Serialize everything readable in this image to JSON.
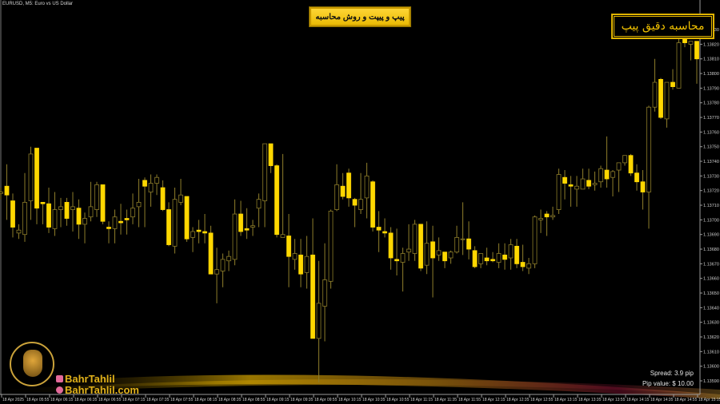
{
  "window": {
    "symbol_title": "EURUSD, M5:  Euro vs US Dollar"
  },
  "header_button": {
    "label": "پیپ و پیپت و روش محاسبه"
  },
  "indicator_box": {
    "label": "محاسبه دقیق پیپ"
  },
  "info_panel": {
    "spread": "Spread:  3.9  pip",
    "pip_value": "Pip value: $ 10.00"
  },
  "branding": {
    "instagram": "BahrTahlil",
    "website": "BahrTahlil.com",
    "instagram_icon": "instagram-icon",
    "website_icon": "globe-icon"
  },
  "colors": {
    "background": "#000000",
    "bear_candle": "#ffd700",
    "bull_candle_outline": "#8c7c2a",
    "axis": "#9a9a9a",
    "accent_gold": "#e0b300"
  },
  "chart_data": {
    "type": "candlestick",
    "symbol": "EURUSD",
    "timeframe": "M5",
    "ylim": [
      1.13589,
      1.13834
    ],
    "grid": false,
    "y_ticks": [
      "1.13830",
      "1.13820",
      "1.13810",
      "1.13800",
      "1.13790",
      "1.13780",
      "1.13770",
      "1.13760",
      "1.13750",
      "1.13740",
      "1.13730",
      "1.13720",
      "1.13710",
      "1.13700",
      "1.13690",
      "1.13680",
      "1.13670",
      "1.13660",
      "1.13650",
      "1.13640",
      "1.13630",
      "1.13620",
      "1.13610",
      "1.13600",
      "1.13590"
    ],
    "x_ticks": [
      "18 Apr 2025",
      "18 Apr 05:55",
      "18 Apr 06:15",
      "18 Apr 06:35",
      "18 Apr 06:55",
      "18 Apr 07:15",
      "18 Apr 07:35",
      "18 Apr 07:55",
      "18 Apr 08:15",
      "18 Apr 08:35",
      "18 Apr 08:55",
      "18 Apr 09:15",
      "18 Apr 09:35",
      "18 Apr 09:55",
      "18 Apr 10:15",
      "18 Apr 10:35",
      "18 Apr 10:55",
      "18 Apr 11:15",
      "18 Apr 11:35",
      "18 Apr 11:55",
      "18 Apr 12:15",
      "18 Apr 12:35",
      "18 Apr 12:55",
      "18 Apr 13:15",
      "18 Apr 13:35",
      "18 Apr 13:55",
      "18 Apr 14:15",
      "18 Apr 14:35",
      "18 Apr 14:55",
      "18 Apr 15:15"
    ],
    "ohlc": [
      [
        1.13718,
        1.13722,
        1.13714,
        1.13719
      ],
      [
        1.13723,
        1.13738,
        1.137,
        1.13717
      ],
      [
        1.13713,
        1.13718,
        1.13688,
        1.13695
      ],
      [
        1.13691,
        1.13697,
        1.13687,
        1.13693
      ],
      [
        1.1369,
        1.13732,
        1.13685,
        1.13712
      ],
      [
        1.13713,
        1.1375,
        1.137,
        1.13745
      ],
      [
        1.13749,
        1.13749,
        1.13697,
        1.13708
      ],
      [
        1.13712,
        1.13712,
        1.13697,
        1.13711
      ],
      [
        1.13711,
        1.13722,
        1.13691,
        1.13695
      ],
      [
        1.13694,
        1.13719,
        1.13689,
        1.13707
      ],
      [
        1.13707,
        1.13715,
        1.13695,
        1.13709
      ],
      [
        1.13712,
        1.13715,
        1.13696,
        1.13701
      ],
      [
        1.13707,
        1.13719,
        1.13692,
        1.13709
      ],
      [
        1.13708,
        1.13714,
        1.13687,
        1.13697
      ],
      [
        1.13697,
        1.13705,
        1.13684,
        1.13701
      ],
      [
        1.13702,
        1.13726,
        1.13699,
        1.13709
      ],
      [
        1.13707,
        1.13726,
        1.13702,
        1.13724
      ],
      [
        1.13724,
        1.13724,
        1.13697,
        1.13699
      ],
      [
        1.13695,
        1.13699,
        1.13684,
        1.13694
      ],
      [
        1.13694,
        1.13707,
        1.13684,
        1.13702
      ],
      [
        1.13699,
        1.13711,
        1.1369,
        1.13698
      ],
      [
        1.13701,
        1.13707,
        1.1369,
        1.137
      ],
      [
        1.13702,
        1.13718,
        1.13697,
        1.13708
      ],
      [
        1.13709,
        1.13728,
        1.13695,
        1.13712
      ],
      [
        1.13727,
        1.13729,
        1.13695,
        1.13723
      ],
      [
        1.13719,
        1.13731,
        1.13709,
        1.13725
      ],
      [
        1.13725,
        1.13731,
        1.13717,
        1.13729
      ],
      [
        1.13722,
        1.13727,
        1.13706,
        1.13707
      ],
      [
        1.13707,
        1.13712,
        1.13682,
        1.13683
      ],
      [
        1.13682,
        1.13722,
        1.13677,
        1.13714
      ],
      [
        1.13712,
        1.13728,
        1.1371,
        1.13717
      ],
      [
        1.13716,
        1.13716,
        1.13685,
        1.13687
      ],
      [
        1.13688,
        1.13695,
        1.13678,
        1.13692
      ],
      [
        1.13693,
        1.137,
        1.13684,
        1.13692
      ],
      [
        1.13692,
        1.13704,
        1.13684,
        1.13691
      ],
      [
        1.13691,
        1.13696,
        1.13663,
        1.13663
      ],
      [
        1.13663,
        1.13681,
        1.13643,
        1.13666
      ],
      [
        1.13665,
        1.13677,
        1.13654,
        1.13673
      ],
      [
        1.13672,
        1.13679,
        1.13665,
        1.13675
      ],
      [
        1.13673,
        1.13714,
        1.13669,
        1.13704
      ],
      [
        1.13704,
        1.13713,
        1.13689,
        1.13692
      ],
      [
        1.13694,
        1.13708,
        1.13687,
        1.13693
      ],
      [
        1.13695,
        1.137,
        1.13689,
        1.13696
      ],
      [
        1.13708,
        1.13718,
        1.13695,
        1.13714
      ],
      [
        1.13713,
        1.13752,
        1.13695,
        1.13752
      ],
      [
        1.13752,
        1.13752,
        1.13732,
        1.13737
      ],
      [
        1.13737,
        1.13738,
        1.13688,
        1.1369
      ],
      [
        1.13688,
        1.13745,
        1.13688,
        1.1369
      ],
      [
        1.13689,
        1.13704,
        1.13654,
        1.13675
      ],
      [
        1.13673,
        1.13687,
        1.13666,
        1.13677
      ],
      [
        1.13676,
        1.13687,
        1.13654,
        1.13663
      ],
      [
        1.13664,
        1.13689,
        1.13653,
        1.13675
      ],
      [
        1.13676,
        1.13701,
        1.13619,
        1.13619
      ],
      [
        1.13619,
        1.13672,
        1.13589,
        1.13643
      ],
      [
        1.13641,
        1.13684,
        1.13617,
        1.13659
      ],
      [
        1.13658,
        1.13707,
        1.13653,
        1.13706
      ],
      [
        1.13707,
        1.13738,
        1.13706,
        1.13724
      ],
      [
        1.13723,
        1.13732,
        1.13714,
        1.13716
      ],
      [
        1.13732,
        1.13735,
        1.13709,
        1.13715
      ],
      [
        1.13714,
        1.13715,
        1.13695,
        1.1371
      ],
      [
        1.13707,
        1.13732,
        1.13704,
        1.13714
      ],
      [
        1.13715,
        1.13739,
        1.13701,
        1.1373
      ],
      [
        1.13726,
        1.13727,
        1.13692,
        1.13695
      ],
      [
        1.13695,
        1.13706,
        1.13678,
        1.13693
      ],
      [
        1.13692,
        1.13701,
        1.13688,
        1.13691
      ],
      [
        1.13691,
        1.13695,
        1.13666,
        1.13674
      ],
      [
        1.13673,
        1.13694,
        1.13662,
        1.13672
      ],
      [
        1.13671,
        1.13681,
        1.13651,
        1.13677
      ],
      [
        1.13678,
        1.13697,
        1.13672,
        1.1368
      ],
      [
        1.13677,
        1.137,
        1.13672,
        1.13697
      ],
      [
        1.13697,
        1.13697,
        1.13665,
        1.13667
      ],
      [
        1.13669,
        1.13699,
        1.13663,
        1.13684
      ],
      [
        1.13685,
        1.13696,
        1.13647,
        1.13674
      ],
      [
        1.13676,
        1.13688,
        1.13672,
        1.13679
      ],
      [
        1.13678,
        1.13678,
        1.13667,
        1.13672
      ],
      [
        1.13674,
        1.13679,
        1.1367,
        1.13678
      ],
      [
        1.13678,
        1.13696,
        1.13677,
        1.13688
      ],
      [
        1.13687,
        1.13712,
        1.13676,
        1.13687
      ],
      [
        1.13687,
        1.13699,
        1.13673,
        1.1368
      ],
      [
        1.13679,
        1.13682,
        1.13667,
        1.13668
      ],
      [
        1.1367,
        1.13677,
        1.13667,
        1.13677
      ],
      [
        1.13674,
        1.13681,
        1.13669,
        1.13672
      ],
      [
        1.13673,
        1.13678,
        1.13671,
        1.13672
      ],
      [
        1.13671,
        1.13684,
        1.13667,
        1.13677
      ],
      [
        1.13676,
        1.13684,
        1.13666,
        1.13673
      ],
      [
        1.13674,
        1.13687,
        1.13666,
        1.13683
      ],
      [
        1.13682,
        1.13687,
        1.13667,
        1.1367
      ],
      [
        1.13671,
        1.13683,
        1.13665,
        1.13668
      ],
      [
        1.13667,
        1.13674,
        1.13663,
        1.1367
      ],
      [
        1.1367,
        1.13703,
        1.13667,
        1.13702
      ],
      [
        1.137,
        1.13707,
        1.13691,
        1.13701
      ],
      [
        1.13704,
        1.13706,
        1.13689,
        1.13702
      ],
      [
        1.13702,
        1.13709,
        1.137,
        1.13703
      ],
      [
        1.13707,
        1.13735,
        1.13704,
        1.13731
      ],
      [
        1.13729,
        1.13734,
        1.13714,
        1.13725
      ],
      [
        1.13724,
        1.1373,
        1.13709,
        1.13723
      ],
      [
        1.13721,
        1.1373,
        1.13709,
        1.13723
      ],
      [
        1.13721,
        1.13735,
        1.13721,
        1.13728
      ],
      [
        1.13727,
        1.13735,
        1.13721,
        1.13723
      ],
      [
        1.13724,
        1.13733,
        1.1372,
        1.13725
      ],
      [
        1.13726,
        1.13737,
        1.13722,
        1.13735
      ],
      [
        1.13734,
        1.13757,
        1.13722,
        1.13728
      ],
      [
        1.13729,
        1.13734,
        1.13716,
        1.13733
      ],
      [
        1.13734,
        1.13739,
        1.13719,
        1.13739
      ],
      [
        1.13739,
        1.13744,
        1.13737,
        1.13744
      ],
      [
        1.13744,
        1.13745,
        1.1373,
        1.13732
      ],
      [
        1.13732,
        1.13738,
        1.1372,
        1.13726
      ],
      [
        1.13726,
        1.13734,
        1.13707,
        1.13719
      ],
      [
        1.13719,
        1.13778,
        1.13694,
        1.13777
      ],
      [
        1.13777,
        1.1381,
        1.13774,
        1.13794
      ],
      [
        1.13796,
        1.13797,
        1.13769,
        1.1377
      ],
      [
        1.13769,
        1.13794,
        1.13763,
        1.13794
      ],
      [
        1.13794,
        1.13803,
        1.13789,
        1.13791
      ],
      [
        1.1379,
        1.13826,
        1.1379,
        1.13821
      ],
      [
        1.13828,
        1.13834,
        1.13818,
        1.13821
      ],
      [
        1.1382,
        1.13822,
        1.13809,
        1.13822
      ],
      [
        1.13822,
        1.13822,
        1.13793,
        1.1381
      ]
    ]
  }
}
